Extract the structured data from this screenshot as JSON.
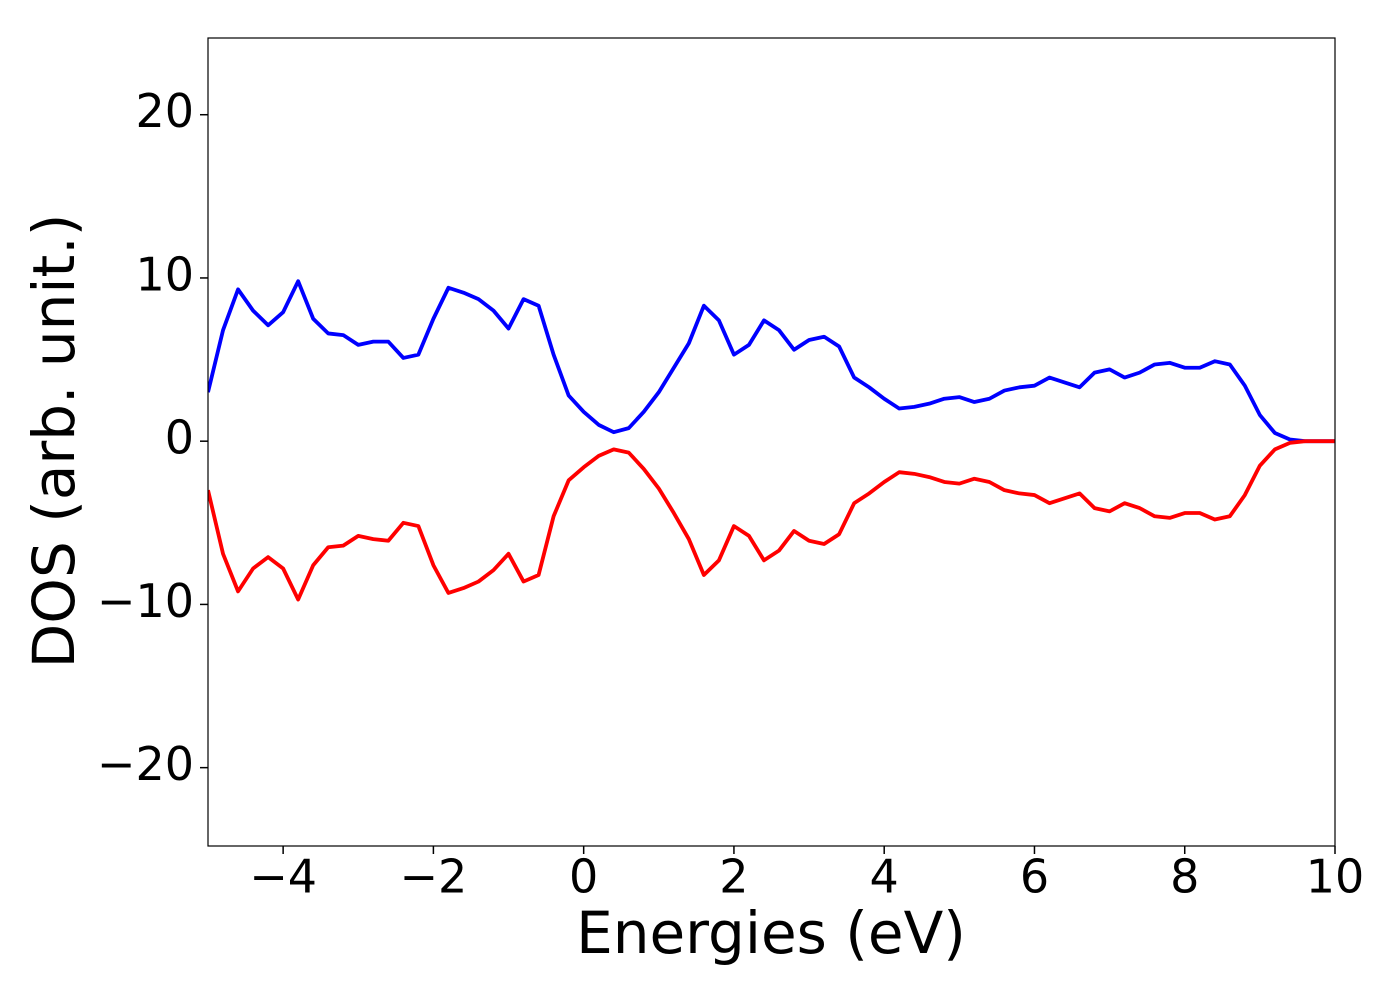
{
  "chart_data": {
    "type": "line",
    "x_label": "Energies (eV)",
    "y_label": "DOS (arb. unit.)",
    "xlim": [
      -5,
      10
    ],
    "ylim": [
      -24.8,
      24.7
    ],
    "xticks": [
      {
        "value": -4,
        "label": "−4"
      },
      {
        "value": -2,
        "label": "−2"
      },
      0,
      2,
      4,
      6,
      8,
      10
    ],
    "yticks": [
      {
        "value": -20,
        "label": "−20"
      },
      {
        "value": -10,
        "label": "−10"
      },
      0,
      10,
      20
    ],
    "grid": false,
    "x": [
      -5,
      -4.8,
      -4.6,
      -4.4,
      -4.2,
      -4,
      -3.8,
      -3.6,
      -3.4,
      -3.2,
      -3,
      -2.8,
      -2.6,
      -2.4,
      -2.2,
      -2,
      -1.8,
      -1.6,
      -1.4,
      -1.2,
      -1,
      -0.8,
      -0.6,
      -0.4,
      -0.2,
      0,
      0.2,
      0.4,
      0.6,
      0.8,
      1,
      1.2,
      1.4,
      1.6,
      1.8,
      2,
      2.2,
      2.4,
      2.6,
      2.8,
      3,
      3.2,
      3.4,
      3.6,
      3.8,
      4,
      4.2,
      4.4,
      4.6,
      4.8,
      5,
      5.2,
      5.4,
      5.6,
      5.8,
      6,
      6.2,
      6.4,
      6.6,
      6.8,
      7,
      7.2,
      7.4,
      7.6,
      7.8,
      8,
      8.2,
      8.4,
      8.6,
      8.8,
      9,
      9.2,
      9.4,
      9.6,
      9.8,
      10
    ],
    "series": [
      {
        "color": "#0000ff",
        "values": [
          3.0,
          6.8,
          9.3,
          8.0,
          7.1,
          7.9,
          9.8,
          7.5,
          6.6,
          6.5,
          5.9,
          6.1,
          6.1,
          5.1,
          5.3,
          7.5,
          9.4,
          9.1,
          8.7,
          8.0,
          6.9,
          8.7,
          8.3,
          5.3,
          2.8,
          1.8,
          1.0,
          0.55,
          0.8,
          1.8,
          3.0,
          4.5,
          6.0,
          8.3,
          7.4,
          5.3,
          5.9,
          7.4,
          6.8,
          5.6,
          6.2,
          6.4,
          5.8,
          3.9,
          3.3,
          2.6,
          2.0,
          2.1,
          2.3,
          2.6,
          2.7,
          2.4,
          2.6,
          3.1,
          3.3,
          3.4,
          3.9,
          3.6,
          3.3,
          4.2,
          4.4,
          3.9,
          4.2,
          4.7,
          4.8,
          4.5,
          4.5,
          4.9,
          4.7,
          3.4,
          1.6,
          0.5,
          0.1,
          0,
          0,
          0
        ]
      },
      {
        "color": "#ff0000",
        "values": [
          -3.0,
          -6.9,
          -9.2,
          -7.8,
          -7.1,
          -7.8,
          -9.7,
          -7.6,
          -6.5,
          -6.4,
          -5.8,
          -6.0,
          -6.1,
          -5.0,
          -5.2,
          -7.6,
          -9.3,
          -9.0,
          -8.6,
          -7.9,
          -6.9,
          -8.6,
          -8.2,
          -4.6,
          -2.4,
          -1.6,
          -0.9,
          -0.5,
          -0.7,
          -1.7,
          -2.9,
          -4.4,
          -6.0,
          -8.2,
          -7.3,
          -5.2,
          -5.8,
          -7.3,
          -6.7,
          -5.5,
          -6.1,
          -6.3,
          -5.7,
          -3.8,
          -3.2,
          -2.5,
          -1.9,
          -2.0,
          -2.2,
          -2.5,
          -2.6,
          -2.3,
          -2.5,
          -3.0,
          -3.2,
          -3.3,
          -3.8,
          -3.5,
          -3.2,
          -4.1,
          -4.3,
          -3.8,
          -4.1,
          -4.6,
          -4.7,
          -4.4,
          -4.4,
          -4.8,
          -4.6,
          -3.3,
          -1.5,
          -0.5,
          -0.1,
          0,
          0,
          0
        ]
      }
    ]
  }
}
